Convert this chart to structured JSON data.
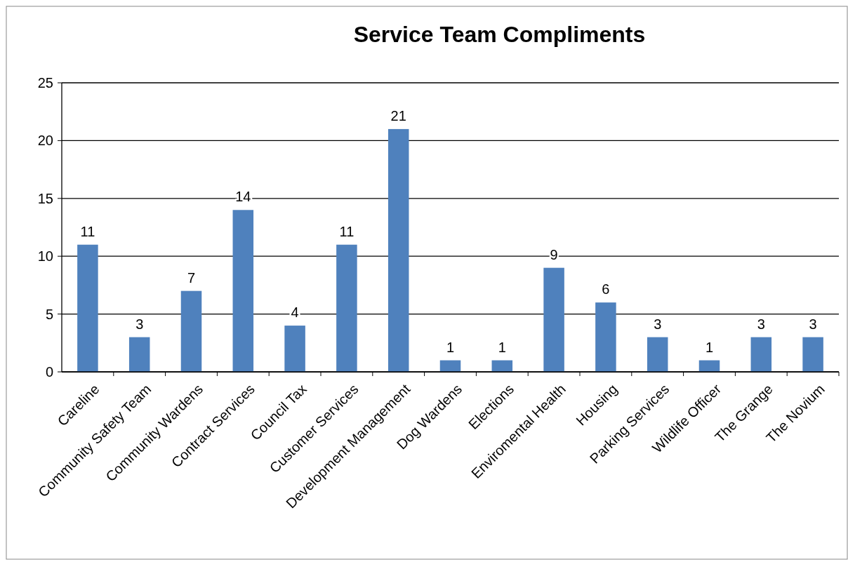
{
  "chart_data": {
    "type": "bar",
    "title": "Service Team Compliments",
    "categories": [
      "Careline",
      "Community Safety Team",
      "Community Wardens",
      "Contract Services",
      "Council Tax",
      "Customer Services",
      "Development Management",
      "Dog Wardens",
      "Elections",
      "Enviromental Health",
      "Housing",
      "Parking Services",
      "Wildlife Officer",
      "The Grange",
      "The Novium"
    ],
    "values": [
      11,
      3,
      7,
      14,
      4,
      11,
      21,
      1,
      1,
      9,
      6,
      3,
      1,
      3,
      3
    ],
    "color": "#4f81bd",
    "ylim": [
      0,
      25
    ],
    "yticks": [
      0,
      5,
      10,
      15,
      20,
      25
    ],
    "grid": "y",
    "data_labels": true
  }
}
